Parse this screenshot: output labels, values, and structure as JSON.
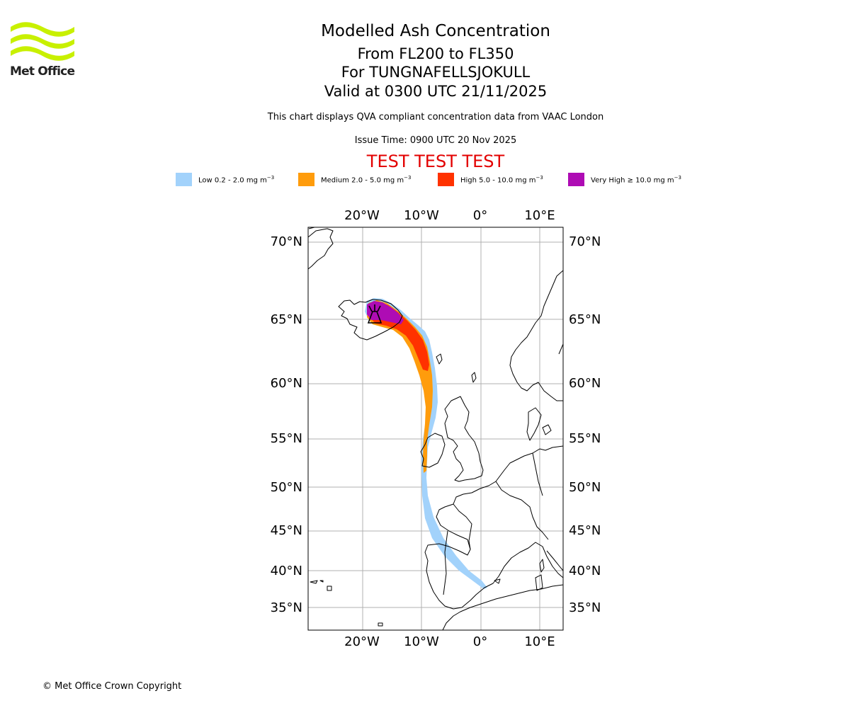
{
  "logo": {
    "name": "Met Office",
    "text": "Met Office",
    "color": "#c8f000"
  },
  "title": {
    "main": "Modelled Ash Concentration",
    "levels": "From FL200 to FL350",
    "volcano": "For TUNGNAFELLSJOKULL",
    "valid": "Valid at 0300 UTC 21/11/2025"
  },
  "description": "This chart displays QVA compliant concentration data from VAAC London",
  "issue_time": "Issue Time: 0900 UTC 20 Nov 2025",
  "test_banner": "TEST TEST TEST",
  "legend": [
    {
      "label": "Low 0.2 - 2.0 mg m",
      "unit_sup": "−3",
      "color": "#a2d2fb"
    },
    {
      "label": "Medium 2.0 - 5.0 mg m",
      "unit_sup": "−3",
      "color": "#ff9c0c"
    },
    {
      "label": "High 5.0 - 10.0 mg m",
      "unit_sup": "−3",
      "color": "#ff3200"
    },
    {
      "label": "Very High  ≥  10.0 mg m",
      "unit_sup": "−3",
      "color": "#ae0cb4"
    }
  ],
  "map": {
    "lon_ticks": [
      "20°W",
      "10°W",
      "0°",
      "10°E"
    ],
    "lat_ticks": [
      "70°N",
      "65°N",
      "60°N",
      "55°N",
      "50°N",
      "45°N",
      "40°N",
      "35°N"
    ]
  },
  "copyright": "© Met Office Crown Copyright"
}
